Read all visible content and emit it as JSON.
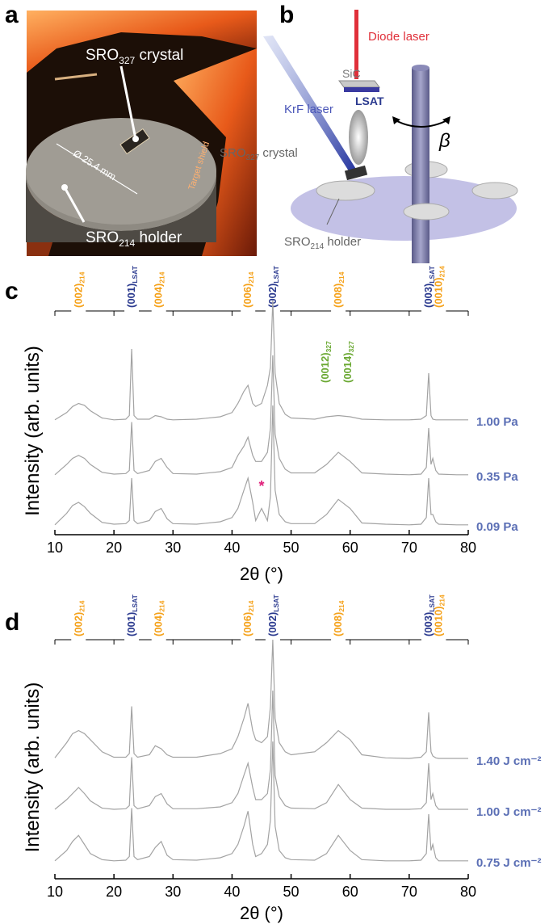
{
  "panels": {
    "photo": {
      "letter": "a",
      "crystal_label": {
        "text": "SRO",
        "sub": "327",
        "after": " crystal"
      },
      "diameter": "Ø 25.4 mm",
      "shield": "Target shield",
      "holder_label": {
        "text": "SRO",
        "sub": "214",
        "after": " holder"
      }
    },
    "diagram": {
      "letter": "b",
      "diode": "Diode laser",
      "sic": "SiC",
      "lsat": "LSAT",
      "krf": "KrF laser",
      "beta": "β",
      "crystal_label": {
        "text": "SRO",
        "sub": "327",
        "after": " crystal"
      },
      "holder_label": {
        "text": "SRO",
        "sub": "214",
        "after": " holder"
      }
    }
  },
  "chart_data": [
    {
      "type": "line",
      "panel": "c",
      "x_label": "2θ (°)",
      "y_label": "Intensity (arb. units)",
      "xlim": [
        10,
        80
      ],
      "xticks": [
        10,
        20,
        30,
        40,
        50,
        60,
        70,
        80
      ],
      "x": [
        10,
        12,
        13,
        14,
        15,
        16,
        18,
        20,
        22,
        22.6,
        23,
        23.4,
        24,
        26,
        27,
        28,
        29,
        30,
        34,
        38,
        40,
        41,
        42,
        42.7,
        43.5,
        44,
        45,
        46,
        46.5,
        46.9,
        47.3,
        48,
        49,
        50,
        54,
        56,
        58,
        60,
        62,
        66,
        70,
        72,
        72.9,
        73.3,
        73.7,
        74,
        74.5,
        75,
        78,
        80
      ],
      "series": [
        {
          "name": "1.00 Pa",
          "color": "#a3a3a3",
          "values": [
            0.3,
            1.5,
            2.5,
            3,
            2.7,
            1.8,
            0.6,
            0.3,
            0.4,
            1,
            12,
            1,
            0.4,
            0.4,
            1,
            0.8,
            0.4,
            0.3,
            0.4,
            0.8,
            1.5,
            3,
            5,
            6,
            3,
            2.5,
            3,
            6,
            9,
            20,
            8,
            3,
            1.2,
            0.6,
            0.4,
            0.8,
            1,
            0.8,
            0.4,
            0.3,
            0.3,
            0.4,
            1,
            8,
            1,
            0.4,
            0.3,
            0.3,
            0.3,
            0.3
          ]
        },
        {
          "name": "0.35 Pa",
          "color": "#a3a3a3",
          "values": [
            0.3,
            2,
            3,
            3.5,
            3,
            2,
            0.7,
            0.4,
            0.5,
            1,
            9,
            1,
            0.5,
            1,
            2.5,
            3,
            1.5,
            0.5,
            0.4,
            0.8,
            1.5,
            3.5,
            5,
            6.5,
            3.5,
            2.5,
            2.5,
            4,
            8,
            20,
            7,
            3,
            1.2,
            0.6,
            0.6,
            2,
            4,
            2.5,
            0.6,
            0.4,
            0.3,
            0.4,
            1.5,
            8,
            2,
            3,
            1,
            0.4,
            0.3,
            0.3
          ]
        },
        {
          "name": "0.09 Pa",
          "color": "#a3a3a3",
          "values": [
            0.3,
            2.2,
            3.5,
            4,
            3.3,
            2.2,
            0.7,
            0.4,
            0.5,
            1,
            8,
            1,
            0.5,
            1,
            2.5,
            3,
            1.3,
            0.5,
            0.4,
            0.8,
            1.5,
            3,
            6,
            8,
            4,
            1,
            3,
            1,
            5,
            20,
            6,
            2,
            0.8,
            0.5,
            0.5,
            2,
            4.5,
            3,
            0.6,
            0.4,
            0.3,
            0.4,
            1.5,
            8,
            2,
            2,
            0.8,
            0.4,
            0.3,
            0.3
          ]
        }
      ],
      "peak_labels": [
        {
          "text": "(002)",
          "sub": "214",
          "x": 14,
          "color": "#f5a21b"
        },
        {
          "text": "(001)",
          "sub": "LSAT",
          "x": 23,
          "color": "#2b3a8f"
        },
        {
          "text": "(004)",
          "sub": "214",
          "x": 27.6,
          "color": "#f5a21b"
        },
        {
          "text": "(006)",
          "sub": "214",
          "x": 42.7,
          "color": "#f5a21b"
        },
        {
          "text": "(002)",
          "sub": "LSAT",
          "x": 46.9,
          "color": "#2b3a8f"
        },
        {
          "text": "(008)",
          "sub": "214",
          "x": 58,
          "color": "#f5a21b"
        },
        {
          "text": "(003)",
          "sub": "LSAT",
          "x": 73.3,
          "color": "#2b3a8f"
        },
        {
          "text": "(0010)",
          "sub": "214",
          "x": 75,
          "color": "#f5a21b"
        }
      ],
      "inner_labels": [
        {
          "text": "(0012)",
          "sub": "327",
          "x": 55.8,
          "color": "#6aa832"
        },
        {
          "text": "(0014)",
          "sub": "327",
          "x": 59.6,
          "color": "#6aa832"
        }
      ],
      "marker": {
        "text": "*",
        "x": 45,
        "color": "#e0207a"
      }
    },
    {
      "type": "line",
      "panel": "d",
      "x_label": "2θ (°)",
      "y_label": "Intensity (arb. units)",
      "xlim": [
        10,
        80
      ],
      "xticks": [
        10,
        20,
        30,
        40,
        50,
        60,
        70,
        80
      ],
      "x": [
        10,
        12,
        13,
        14,
        15,
        16,
        18,
        20,
        22,
        22.6,
        23,
        23.4,
        24,
        26,
        27,
        28,
        29,
        30,
        34,
        38,
        40,
        41,
        42,
        42.7,
        43.5,
        44,
        45,
        46,
        46.5,
        46.9,
        47.3,
        48,
        49,
        50,
        54,
        56,
        58,
        60,
        62,
        66,
        70,
        72,
        72.9,
        73.3,
        73.7,
        74,
        74.5,
        75,
        78,
        80
      ],
      "series": [
        {
          "name": "1.40 J cm⁻²",
          "color": "#a3a3a3",
          "values": [
            0.5,
            3,
            4.5,
            5,
            4.5,
            3.5,
            1.5,
            0.6,
            0.6,
            1.2,
            9,
            1.2,
            0.6,
            1,
            2.5,
            2,
            1,
            0.6,
            0.6,
            1.2,
            2,
            4,
            7,
            9.5,
            5,
            3.5,
            3,
            4,
            9,
            20,
            7,
            3,
            1.5,
            1,
            1.5,
            3,
            5,
            3.5,
            1,
            0.5,
            0.4,
            0.6,
            1.5,
            8,
            1.5,
            0.8,
            0.5,
            0.4,
            0.4,
            0.4
          ]
        },
        {
          "name": "1.00 J cm⁻²",
          "color": "#a3a3a3",
          "values": [
            0.4,
            2,
            3,
            4,
            3,
            1.8,
            0.6,
            0.4,
            0.5,
            1,
            9,
            1,
            0.5,
            1,
            2.5,
            3,
            1.3,
            0.5,
            0.5,
            0.8,
            1.5,
            3,
            6,
            8,
            4,
            2,
            2,
            3,
            7,
            20,
            6,
            2.5,
            1,
            0.6,
            0.5,
            1.5,
            4.5,
            2,
            0.6,
            0.4,
            0.4,
            0.5,
            1.5,
            8,
            2,
            3,
            1,
            0.4,
            0.4,
            0.4
          ]
        },
        {
          "name": "0.75 J cm⁻²",
          "color": "#a3a3a3",
          "values": [
            0.3,
            2,
            3.5,
            4.5,
            3,
            1.5,
            0.5,
            0.3,
            0.4,
            1,
            9,
            1,
            0.5,
            1,
            2.5,
            3.5,
            1.2,
            0.5,
            0.4,
            0.8,
            1.5,
            3,
            6,
            8.5,
            3,
            1,
            1.5,
            3,
            7,
            20,
            6,
            2,
            0.8,
            0.5,
            0.4,
            1.5,
            4.5,
            2,
            0.5,
            0.3,
            0.3,
            0.4,
            1.5,
            8,
            2,
            3,
            0.8,
            0.3,
            0.3,
            0.3
          ]
        }
      ],
      "peak_labels": [
        {
          "text": "(002)",
          "sub": "214",
          "x": 14,
          "color": "#f5a21b"
        },
        {
          "text": "(001)",
          "sub": "LSAT",
          "x": 23,
          "color": "#2b3a8f"
        },
        {
          "text": "(004)",
          "sub": "214",
          "x": 27.6,
          "color": "#f5a21b"
        },
        {
          "text": "(006)",
          "sub": "214",
          "x": 42.7,
          "color": "#f5a21b"
        },
        {
          "text": "(002)",
          "sub": "LSAT",
          "x": 46.9,
          "color": "#2b3a8f"
        },
        {
          "text": "(008)",
          "sub": "214",
          "x": 58,
          "color": "#f5a21b"
        },
        {
          "text": "(003)",
          "sub": "LSAT",
          "x": 73.3,
          "color": "#2b3a8f"
        },
        {
          "text": "(0010)",
          "sub": "214",
          "x": 75,
          "color": "#f5a21b"
        }
      ]
    }
  ]
}
